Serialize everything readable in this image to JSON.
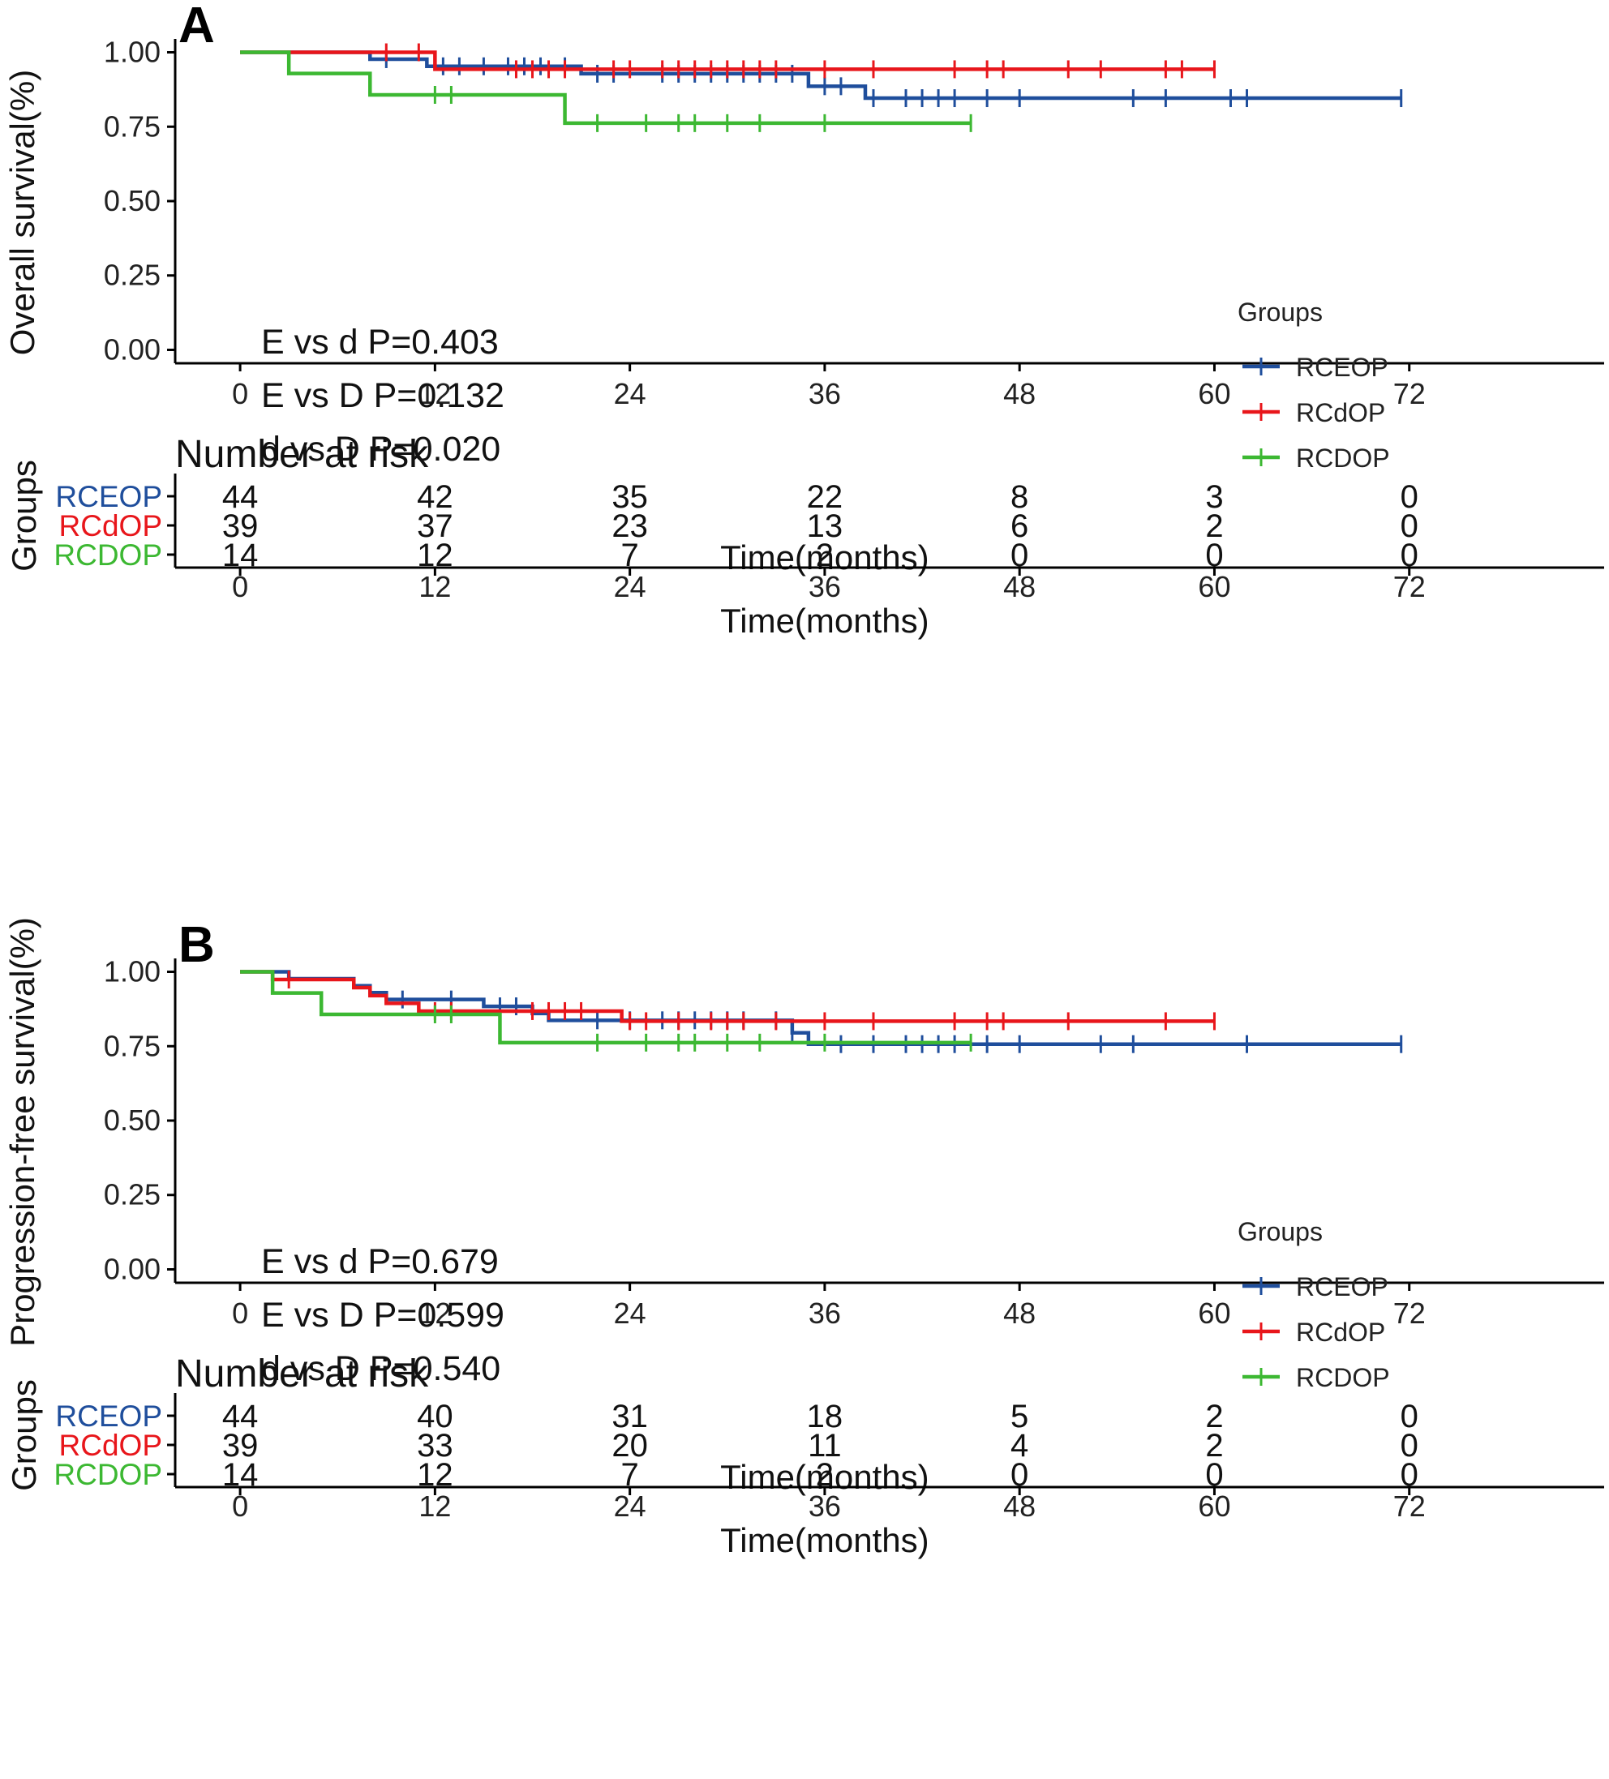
{
  "colors": {
    "RCEOP": "#1f4e9c",
    "RCdOP": "#e8161b",
    "RCDOP": "#3cb832",
    "axis": "#000000"
  },
  "chart_data": [
    {
      "type": "line",
      "panel_letter": "A",
      "ylabel": "Overall survival(%)",
      "xlabel": "Time(months)",
      "xlim": [
        -4,
        84
      ],
      "ylim": [
        -0.045,
        1.045
      ],
      "xticks": [
        "0",
        "12",
        "24",
        "36",
        "48",
        "60",
        "72"
      ],
      "yticks": [
        "0.00",
        "0.25",
        "0.50",
        "0.75",
        "1.00"
      ],
      "legend_title": "Groups",
      "legend_position": "right",
      "annotations": [
        "E vs d P=0.403",
        "E vs D P=0.132",
        "d vs D P=0.020"
      ],
      "series": [
        {
          "name": "RCEOP",
          "steps": [
            [
              0,
              1.0
            ],
            [
              8,
              0.977
            ],
            [
              11.5,
              0.953
            ],
            [
              21,
              0.928
            ],
            [
              35,
              0.886
            ],
            [
              38.5,
              0.846
            ],
            [
              71.5,
              0.846
            ]
          ],
          "censors": [
            [
              9,
              0.977
            ],
            [
              12.5,
              0.953
            ],
            [
              13.5,
              0.953
            ],
            [
              15,
              0.953
            ],
            [
              16.5,
              0.953
            ],
            [
              17.5,
              0.953
            ],
            [
              18.5,
              0.953
            ],
            [
              20,
              0.953
            ],
            [
              22,
              0.928
            ],
            [
              23,
              0.928
            ],
            [
              26,
              0.928
            ],
            [
              27,
              0.928
            ],
            [
              28,
              0.928
            ],
            [
              29,
              0.928
            ],
            [
              30,
              0.928
            ],
            [
              31,
              0.928
            ],
            [
              32,
              0.928
            ],
            [
              33,
              0.928
            ],
            [
              34,
              0.928
            ],
            [
              36,
              0.886
            ],
            [
              37,
              0.886
            ],
            [
              39,
              0.846
            ],
            [
              41,
              0.846
            ],
            [
              42,
              0.846
            ],
            [
              43,
              0.846
            ],
            [
              44,
              0.846
            ],
            [
              46,
              0.846
            ],
            [
              48,
              0.846
            ],
            [
              55,
              0.846
            ],
            [
              57,
              0.846
            ],
            [
              61,
              0.846
            ],
            [
              62,
              0.846
            ],
            [
              71.5,
              0.846
            ]
          ]
        },
        {
          "name": "RCdOP",
          "steps": [
            [
              0,
              1.0
            ],
            [
              12,
              0.943
            ],
            [
              60,
              0.943
            ]
          ],
          "censors": [
            [
              9,
              1.0
            ],
            [
              11,
              1.0
            ],
            [
              17,
              0.943
            ],
            [
              18,
              0.943
            ],
            [
              19,
              0.943
            ],
            [
              20,
              0.943
            ],
            [
              23,
              0.943
            ],
            [
              24,
              0.943
            ],
            [
              26,
              0.943
            ],
            [
              27,
              0.943
            ],
            [
              28,
              0.943
            ],
            [
              29,
              0.943
            ],
            [
              30,
              0.943
            ],
            [
              31,
              0.943
            ],
            [
              32,
              0.943
            ],
            [
              33,
              0.943
            ],
            [
              36,
              0.943
            ],
            [
              39,
              0.943
            ],
            [
              44,
              0.943
            ],
            [
              46,
              0.943
            ],
            [
              47,
              0.943
            ],
            [
              51,
              0.943
            ],
            [
              53,
              0.943
            ],
            [
              57,
              0.943
            ],
            [
              58,
              0.943
            ],
            [
              60,
              0.943
            ]
          ]
        },
        {
          "name": "RCDOP",
          "steps": [
            [
              0,
              1.0
            ],
            [
              3,
              0.929
            ],
            [
              8,
              0.857
            ],
            [
              20,
              0.762
            ],
            [
              45,
              0.762
            ]
          ],
          "censors": [
            [
              12,
              0.857
            ],
            [
              13,
              0.857
            ],
            [
              22,
              0.762
            ],
            [
              25,
              0.762
            ],
            [
              27,
              0.762
            ],
            [
              28,
              0.762
            ],
            [
              30,
              0.762
            ],
            [
              32,
              0.762
            ],
            [
              36,
              0.762
            ],
            [
              45,
              0.762
            ]
          ]
        }
      ],
      "risk_table": {
        "title": "Number at risk",
        "ylabel": "Groups",
        "xlabel": "Time(months)",
        "xticks": [
          "0",
          "12",
          "24",
          "36",
          "48",
          "60",
          "72"
        ],
        "rows": [
          {
            "name": "RCEOP",
            "values": [
              "44",
              "42",
              "35",
              "22",
              "8",
              "3",
              "0"
            ]
          },
          {
            "name": "RCdOP",
            "values": [
              "39",
              "37",
              "23",
              "13",
              "6",
              "2",
              "0"
            ]
          },
          {
            "name": "RCDOP",
            "values": [
              "14",
              "12",
              "7",
              "2",
              "0",
              "0",
              "0"
            ]
          }
        ]
      }
    },
    {
      "type": "line",
      "panel_letter": "B",
      "ylabel": "Progression-free survival(%)",
      "xlabel": "Time(months)",
      "xlim": [
        -4,
        84
      ],
      "ylim": [
        -0.045,
        1.045
      ],
      "xticks": [
        "0",
        "12",
        "24",
        "36",
        "48",
        "60",
        "72"
      ],
      "yticks": [
        "0.00",
        "0.25",
        "0.50",
        "0.75",
        "1.00"
      ],
      "legend_title": "Groups",
      "legend_position": "right",
      "annotations": [
        "E vs d P=0.679",
        "E vs D P=0.599",
        "d vs D P=0.540"
      ],
      "series": [
        {
          "name": "RCEOP",
          "steps": [
            [
              0,
              1.0
            ],
            [
              3,
              0.977
            ],
            [
              7,
              0.953
            ],
            [
              8,
              0.93
            ],
            [
              9,
              0.907
            ],
            [
              15,
              0.884
            ],
            [
              18,
              0.86
            ],
            [
              19,
              0.837
            ],
            [
              34,
              0.795
            ],
            [
              35,
              0.757
            ],
            [
              71.5,
              0.757
            ]
          ],
          "censors": [
            [
              10,
              0.907
            ],
            [
              13,
              0.907
            ],
            [
              16,
              0.884
            ],
            [
              17,
              0.884
            ],
            [
              22,
              0.837
            ],
            [
              24,
              0.837
            ],
            [
              26,
              0.837
            ],
            [
              27,
              0.837
            ],
            [
              28,
              0.837
            ],
            [
              29,
              0.837
            ],
            [
              30,
              0.837
            ],
            [
              31,
              0.837
            ],
            [
              33,
              0.837
            ],
            [
              34,
              0.795
            ],
            [
              37,
              0.757
            ],
            [
              39,
              0.757
            ],
            [
              41,
              0.757
            ],
            [
              42,
              0.757
            ],
            [
              43,
              0.757
            ],
            [
              44,
              0.757
            ],
            [
              46,
              0.757
            ],
            [
              48,
              0.757
            ],
            [
              53,
              0.757
            ],
            [
              55,
              0.757
            ],
            [
              62,
              0.757
            ],
            [
              71.5,
              0.757
            ]
          ]
        },
        {
          "name": "RCdOP",
          "steps": [
            [
              0,
              1.0
            ],
            [
              2,
              0.974
            ],
            [
              7,
              0.947
            ],
            [
              8,
              0.92
            ],
            [
              9,
              0.894
            ],
            [
              11,
              0.868
            ],
            [
              23.5,
              0.834
            ],
            [
              60,
              0.834
            ]
          ],
          "censors": [
            [
              3,
              0.974
            ],
            [
              12,
              0.868
            ],
            [
              13,
              0.868
            ],
            [
              18,
              0.868
            ],
            [
              19,
              0.868
            ],
            [
              20,
              0.868
            ],
            [
              21,
              0.868
            ],
            [
              24,
              0.834
            ],
            [
              25,
              0.834
            ],
            [
              27,
              0.834
            ],
            [
              29,
              0.834
            ],
            [
              30,
              0.834
            ],
            [
              31,
              0.834
            ],
            [
              33,
              0.834
            ],
            [
              36,
              0.834
            ],
            [
              39,
              0.834
            ],
            [
              44,
              0.834
            ],
            [
              46,
              0.834
            ],
            [
              47,
              0.834
            ],
            [
              51,
              0.834
            ],
            [
              57,
              0.834
            ],
            [
              60,
              0.834
            ]
          ]
        },
        {
          "name": "RCDOP",
          "steps": [
            [
              0,
              1.0
            ],
            [
              2,
              0.929
            ],
            [
              5,
              0.857
            ],
            [
              16,
              0.762
            ],
            [
              45,
              0.762
            ]
          ],
          "censors": [
            [
              12,
              0.857
            ],
            [
              13,
              0.857
            ],
            [
              22,
              0.762
            ],
            [
              25,
              0.762
            ],
            [
              27,
              0.762
            ],
            [
              28,
              0.762
            ],
            [
              30,
              0.762
            ],
            [
              32,
              0.762
            ],
            [
              36,
              0.762
            ],
            [
              45,
              0.762
            ]
          ]
        }
      ],
      "risk_table": {
        "title": "Number at risk",
        "ylabel": "Groups",
        "xlabel": "Time(months)",
        "xticks": [
          "0",
          "12",
          "24",
          "36",
          "48",
          "60",
          "72"
        ],
        "rows": [
          {
            "name": "RCEOP",
            "values": [
              "44",
              "40",
              "31",
              "18",
              "5",
              "2",
              "0"
            ]
          },
          {
            "name": "RCdOP",
            "values": [
              "39",
              "33",
              "20",
              "11",
              "4",
              "2",
              "0"
            ]
          },
          {
            "name": "RCDOP",
            "values": [
              "14",
              "12",
              "7",
              "2",
              "0",
              "0",
              "0"
            ]
          }
        ]
      }
    }
  ]
}
